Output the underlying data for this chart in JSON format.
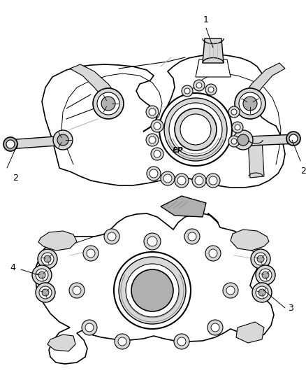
{
  "background_color": "#ffffff",
  "fig_width": 4.38,
  "fig_height": 5.33,
  "dpi": 100,
  "line_color": "#000000",
  "text_color": "#000000",
  "label_fontsize": 9,
  "ep_text": "EP",
  "gray_light": "#d8d8d8",
  "gray_mid": "#b0b0b0",
  "gray_dark": "#888888"
}
